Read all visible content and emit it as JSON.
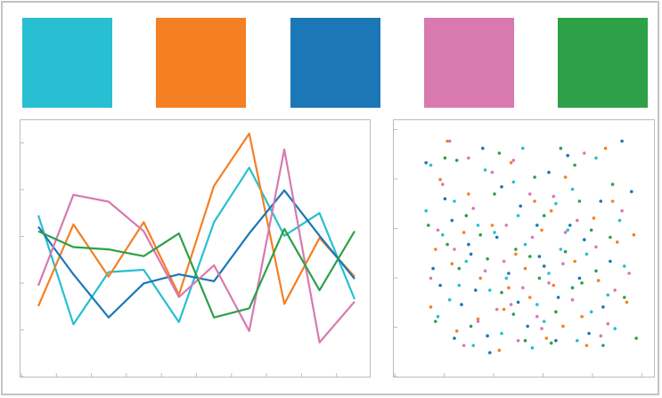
{
  "palette": {
    "swatches": [
      {
        "name": "cyan",
        "color": "#27bfd1"
      },
      {
        "name": "orange",
        "color": "#f57f23"
      },
      {
        "name": "blue",
        "color": "#1b77b6"
      },
      {
        "name": "pink",
        "color": "#d879b0"
      },
      {
        "name": "green",
        "color": "#2ca148"
      }
    ]
  },
  "chart_data": [
    {
      "type": "line",
      "grid": false,
      "ylim": [
        0,
        1
      ],
      "x": [
        0,
        1,
        2,
        3,
        4,
        5,
        6,
        7,
        8,
        9
      ],
      "series": [
        {
          "color": "#27bfd1",
          "values": [
            0.64,
            0.16,
            0.39,
            0.4,
            0.17,
            0.61,
            0.85,
            0.55,
            0.65,
            0.27
          ]
        },
        {
          "color": "#f57f23",
          "values": [
            0.24,
            0.6,
            0.37,
            0.61,
            0.29,
            0.77,
            1.0,
            0.25,
            0.54,
            0.37
          ]
        },
        {
          "color": "#1b77b6",
          "values": [
            0.59,
            0.38,
            0.19,
            0.34,
            0.38,
            0.35,
            0.56,
            0.75,
            0.55,
            0.36
          ]
        },
        {
          "color": "#d879b0",
          "values": [
            0.33,
            0.73,
            0.7,
            0.57,
            0.28,
            0.42,
            0.13,
            0.93,
            0.08,
            0.26
          ]
        },
        {
          "color": "#2ca148",
          "values": [
            0.57,
            0.5,
            0.49,
            0.46,
            0.56,
            0.19,
            0.23,
            0.58,
            0.31,
            0.57
          ]
        }
      ]
    },
    {
      "type": "scatter",
      "grid": false,
      "xlim": [
        0,
        1
      ],
      "ylim": [
        0,
        1
      ],
      "series": [
        {
          "color": "#27bfd1",
          "points": [
            [
              0.1,
              0.85
            ],
            [
              0.13,
              0.22
            ],
            [
              0.2,
              0.7
            ],
            [
              0.25,
              0.45
            ],
            [
              0.3,
              0.6
            ],
            [
              0.35,
              0.33
            ],
            [
              0.4,
              0.15
            ],
            [
              0.45,
              0.78
            ],
            [
              0.5,
              0.52
            ],
            [
              0.55,
              0.27
            ],
            [
              0.6,
              0.4
            ],
            [
              0.63,
              0.69
            ],
            [
              0.68,
              0.58
            ],
            [
              0.72,
              0.12
            ],
            [
              0.76,
              0.48
            ],
            [
              0.8,
              0.88
            ],
            [
              0.85,
              0.31
            ],
            [
              0.9,
              0.62
            ],
            [
              0.15,
              0.56
            ],
            [
              0.28,
              0.1
            ],
            [
              0.33,
              0.83
            ],
            [
              0.42,
              0.38
            ],
            [
              0.58,
              0.2
            ],
            [
              0.7,
              0.75
            ],
            [
              0.88,
              0.17
            ],
            [
              0.22,
              0.35
            ],
            [
              0.47,
              0.64
            ],
            [
              0.53,
              0.09
            ],
            [
              0.65,
              0.5
            ],
            [
              0.92,
              0.43
            ],
            [
              0.37,
              0.57
            ],
            [
              0.18,
              0.29
            ],
            [
              0.78,
              0.24
            ],
            [
              0.08,
              0.66
            ],
            [
              0.49,
              0.92
            ]
          ]
        },
        {
          "color": "#f57f23",
          "points": [
            [
              0.12,
              0.5
            ],
            [
              0.17,
              0.95
            ],
            [
              0.21,
              0.16
            ],
            [
              0.26,
              0.73
            ],
            [
              0.31,
              0.38
            ],
            [
              0.36,
              0.6
            ],
            [
              0.41,
              0.25
            ],
            [
              0.44,
              0.86
            ],
            [
              0.5,
              0.42
            ],
            [
              0.54,
              0.7
            ],
            [
              0.59,
              0.13
            ],
            [
              0.62,
              0.35
            ],
            [
              0.67,
              0.8
            ],
            [
              0.71,
              0.45
            ],
            [
              0.74,
              0.22
            ],
            [
              0.79,
              0.63
            ],
            [
              0.84,
              0.92
            ],
            [
              0.89,
              0.53
            ],
            [
              0.93,
              0.28
            ],
            [
              0.96,
              0.56
            ],
            [
              0.1,
              0.26
            ],
            [
              0.24,
              0.57
            ],
            [
              0.39,
              0.08
            ],
            [
              0.46,
              0.48
            ],
            [
              0.57,
              0.58
            ],
            [
              0.66,
              0.18
            ],
            [
              0.81,
              0.37
            ],
            [
              0.14,
              0.79
            ],
            [
              0.3,
              0.21
            ],
            [
              0.52,
              0.3
            ],
            [
              0.61,
              0.66
            ],
            [
              0.87,
              0.7
            ],
            [
              0.19,
              0.44
            ],
            [
              0.43,
              0.34
            ],
            [
              0.76,
              0.1
            ]
          ]
        },
        {
          "color": "#1b77b6",
          "points": [
            [
              0.08,
              0.86
            ],
            [
              0.14,
              0.35
            ],
            [
              0.19,
              0.62
            ],
            [
              0.23,
              0.27
            ],
            [
              0.27,
              0.48
            ],
            [
              0.32,
              0.92
            ],
            [
              0.34,
              0.14
            ],
            [
              0.38,
              0.55
            ],
            [
              0.43,
              0.4
            ],
            [
              0.48,
              0.68
            ],
            [
              0.51,
              0.18
            ],
            [
              0.56,
              0.47
            ],
            [
              0.6,
              0.82
            ],
            [
              0.64,
              0.3
            ],
            [
              0.69,
              0.6
            ],
            [
              0.73,
              0.38
            ],
            [
              0.77,
              0.15
            ],
            [
              0.82,
              0.7
            ],
            [
              0.86,
              0.45
            ],
            [
              0.91,
              0.95
            ],
            [
              0.95,
              0.74
            ],
            [
              0.16,
              0.71
            ],
            [
              0.29,
              0.33
            ],
            [
              0.35,
              0.07
            ],
            [
              0.47,
              0.28
            ],
            [
              0.55,
              0.6
            ],
            [
              0.63,
              0.12
            ],
            [
              0.75,
              0.54
            ],
            [
              0.83,
              0.26
            ],
            [
              0.2,
              0.13
            ],
            [
              0.4,
              0.76
            ],
            [
              0.58,
              0.43
            ],
            [
              0.68,
              0.89
            ],
            [
              0.26,
              0.52
            ],
            [
              0.11,
              0.42
            ]
          ]
        },
        {
          "color": "#d879b0",
          "points": [
            [
              0.1,
              0.38
            ],
            [
              0.15,
              0.77
            ],
            [
              0.2,
              0.5
            ],
            [
              0.24,
              0.1
            ],
            [
              0.28,
              0.67
            ],
            [
              0.33,
              0.41
            ],
            [
              0.38,
              0.25
            ],
            [
              0.42,
              0.6
            ],
            [
              0.45,
              0.87
            ],
            [
              0.49,
              0.34
            ],
            [
              0.53,
              0.55
            ],
            [
              0.57,
              0.17
            ],
            [
              0.62,
              0.72
            ],
            [
              0.66,
              0.44
            ],
            [
              0.7,
              0.29
            ],
            [
              0.75,
              0.9
            ],
            [
              0.8,
              0.51
            ],
            [
              0.85,
              0.19
            ],
            [
              0.91,
              0.66
            ],
            [
              0.94,
              0.4
            ],
            [
              0.18,
              0.95
            ],
            [
              0.3,
              0.2
            ],
            [
              0.36,
              0.82
            ],
            [
              0.47,
              0.12
            ],
            [
              0.52,
              0.73
            ],
            [
              0.6,
              0.36
            ],
            [
              0.72,
              0.62
            ],
            [
              0.88,
              0.33
            ],
            [
              0.13,
              0.58
            ],
            [
              0.26,
              0.88
            ],
            [
              0.41,
              0.45
            ],
            [
              0.55,
              0.22
            ],
            [
              0.67,
              0.57
            ],
            [
              0.82,
              0.14
            ],
            [
              0.44,
              0.27
            ]
          ]
        },
        {
          "color": "#2ca148",
          "points": [
            [
              0.09,
              0.6
            ],
            [
              0.16,
              0.88
            ],
            [
              0.22,
              0.42
            ],
            [
              0.27,
              0.18
            ],
            [
              0.31,
              0.56
            ],
            [
              0.37,
              0.73
            ],
            [
              0.4,
              0.32
            ],
            [
              0.46,
              0.5
            ],
            [
              0.5,
              0.12
            ],
            [
              0.54,
              0.8
            ],
            [
              0.58,
              0.64
            ],
            [
              0.63,
              0.24
            ],
            [
              0.67,
              0.49
            ],
            [
              0.71,
              0.85
            ],
            [
              0.74,
              0.36
            ],
            [
              0.78,
              0.58
            ],
            [
              0.83,
              0.1
            ],
            [
              0.87,
              0.77
            ],
            [
              0.92,
              0.3
            ],
            [
              0.97,
              0.13
            ],
            [
              0.12,
              0.2
            ],
            [
              0.21,
              0.87
            ],
            [
              0.34,
              0.46
            ],
            [
              0.45,
              0.23
            ],
            [
              0.56,
              0.38
            ],
            [
              0.65,
              0.92
            ],
            [
              0.73,
              0.7
            ],
            [
              0.8,
              0.41
            ],
            [
              0.25,
              0.64
            ],
            [
              0.39,
              0.9
            ],
            [
              0.52,
              0.47
            ],
            [
              0.61,
              0.11
            ],
            [
              0.7,
              0.34
            ],
            [
              0.86,
              0.55
            ],
            [
              0.17,
              0.52
            ]
          ]
        }
      ]
    }
  ]
}
